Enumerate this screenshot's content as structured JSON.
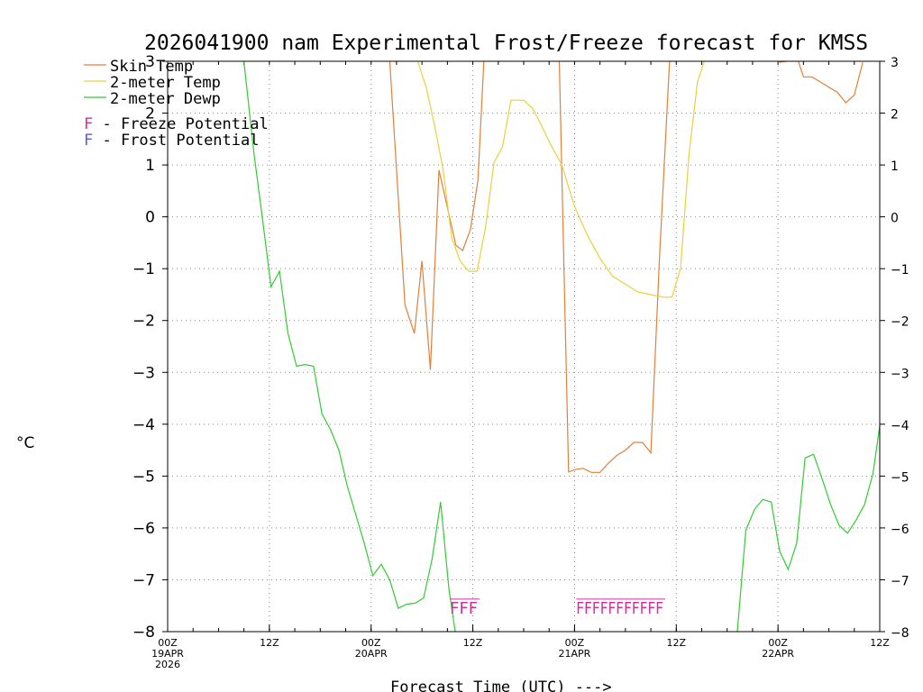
{
  "chart_data": {
    "type": "line",
    "title": "2026041900 nam Experimental Frost/Freeze forecast for KMSS",
    "ylabel": "°C",
    "xlabel": "Forecast Time (UTC) --->",
    "ylim": [
      -8,
      3
    ],
    "yticks": [
      -8,
      -7,
      -6,
      -5,
      -4,
      -3,
      -2,
      -1,
      0,
      1,
      2,
      3
    ],
    "xlim_hours": [
      0,
      84
    ],
    "xticks": [
      {
        "h": 0,
        "lines": [
          "00Z",
          "19APR",
          "2026"
        ]
      },
      {
        "h": 12,
        "lines": [
          "12Z"
        ]
      },
      {
        "h": 24,
        "lines": [
          "00Z",
          "20APR"
        ]
      },
      {
        "h": 36,
        "lines": [
          "12Z"
        ]
      },
      {
        "h": 48,
        "lines": [
          "00Z",
          "21APR"
        ]
      },
      {
        "h": 60,
        "lines": [
          "12Z"
        ]
      },
      {
        "h": 72,
        "lines": [
          "00Z",
          "22APR"
        ]
      },
      {
        "h": 84,
        "lines": [
          "12Z"
        ]
      }
    ],
    "series": [
      {
        "name": "Skin Temp",
        "color": "#e0803a",
        "points": [
          [
            26.2,
            3.0
          ],
          [
            28,
            -1.7
          ],
          [
            29.1,
            -2.25
          ],
          [
            30,
            -0.85
          ],
          [
            31,
            -2.95
          ],
          [
            32,
            0.9
          ],
          [
            34,
            -0.55
          ],
          [
            34.8,
            -0.65
          ],
          [
            35.7,
            -0.25
          ],
          [
            36.6,
            0.7
          ],
          [
            37.3,
            3.0
          ],
          null,
          [
            46.2,
            3.0
          ],
          [
            47.3,
            -4.92
          ],
          [
            48.2,
            -4.87
          ],
          [
            49,
            -4.85
          ],
          [
            50,
            -4.93
          ],
          [
            51,
            -4.93
          ],
          [
            52,
            -4.75
          ],
          [
            53,
            -4.6
          ],
          [
            54,
            -4.5
          ],
          [
            55,
            -4.35
          ],
          [
            56,
            -4.35
          ],
          [
            57,
            -4.55
          ],
          [
            58,
            -0.85
          ],
          [
            59.2,
            3.0
          ],
          null,
          [
            72,
            2.98
          ],
          [
            73,
            3.0
          ],
          [
            74,
            3.2
          ],
          [
            75,
            2.7
          ],
          [
            76,
            2.7
          ],
          [
            77,
            2.6
          ],
          [
            78,
            2.5
          ],
          [
            79,
            2.4
          ],
          [
            80,
            2.2
          ],
          [
            81,
            2.35
          ],
          [
            82,
            2.98
          ]
        ]
      },
      {
        "name": "2-meter Temp",
        "color": "#e6d23a",
        "points": [
          [
            29.5,
            3.0
          ],
          [
            30.5,
            2.5
          ],
          [
            31.5,
            1.75
          ],
          [
            32.5,
            0.9
          ],
          [
            33.5,
            -0.4
          ],
          [
            34.5,
            -0.85
          ],
          [
            35.5,
            -1.05
          ],
          [
            36.5,
            -1.05
          ],
          [
            37.5,
            -0.2
          ],
          [
            38.5,
            1.05
          ],
          [
            39.5,
            1.35
          ],
          [
            40.5,
            2.25
          ],
          [
            42,
            2.25
          ],
          [
            43,
            2.1
          ],
          [
            44,
            1.8
          ],
          [
            45,
            1.45
          ],
          [
            46.5,
            1.0
          ],
          [
            48,
            0.2
          ],
          [
            49.5,
            -0.35
          ],
          [
            51,
            -0.8
          ],
          [
            52.5,
            -1.15
          ],
          [
            54,
            -1.3
          ],
          [
            55.5,
            -1.45
          ],
          [
            57,
            -1.5
          ],
          [
            58.5,
            -1.55
          ],
          [
            59.5,
            -1.55
          ],
          [
            60.5,
            -1.0
          ],
          [
            61.5,
            1.2
          ],
          [
            62.5,
            2.6
          ],
          [
            63.3,
            3.0
          ]
        ]
      },
      {
        "name": "2-meter Dewp",
        "color": "#33cc33",
        "points": [
          [
            9,
            3.0
          ],
          [
            10.2,
            1.2
          ],
          [
            11.2,
            -0.05
          ],
          [
            12.2,
            -1.35
          ],
          [
            13.2,
            -1.05
          ],
          [
            14.2,
            -2.25
          ],
          [
            15.2,
            -2.88
          ],
          [
            16.2,
            -2.85
          ],
          [
            17.2,
            -2.88
          ],
          [
            18.2,
            -3.8
          ],
          [
            19.2,
            -4.1
          ],
          [
            20.2,
            -4.5
          ],
          [
            21.2,
            -5.2
          ],
          [
            22.2,
            -5.75
          ],
          [
            23.2,
            -6.3
          ],
          [
            24.2,
            -6.92
          ],
          [
            25.2,
            -6.7
          ],
          [
            26.2,
            -7.0
          ],
          [
            27.2,
            -7.55
          ],
          [
            28.2,
            -7.47
          ],
          [
            29.2,
            -7.45
          ],
          [
            30.2,
            -7.35
          ],
          [
            31.2,
            -6.6
          ],
          [
            32.2,
            -5.5
          ],
          [
            33.2,
            -7.2
          ],
          [
            34.2,
            -8.3
          ],
          null,
          [
            67.2,
            -8.0
          ],
          [
            68.2,
            -6.05
          ],
          [
            69.2,
            -5.65
          ],
          [
            70.2,
            -5.45
          ],
          [
            71.2,
            -5.5
          ],
          [
            72.2,
            -6.45
          ],
          [
            73.2,
            -6.8
          ],
          [
            74.2,
            -6.3
          ],
          [
            75.2,
            -4.65
          ],
          [
            76.2,
            -4.58
          ],
          [
            77.2,
            -5.05
          ],
          [
            78.2,
            -5.55
          ],
          [
            79.2,
            -5.95
          ],
          [
            80.2,
            -6.1
          ],
          [
            81.2,
            -5.85
          ],
          [
            82.2,
            -5.55
          ],
          [
            83.2,
            -4.95
          ],
          [
            84.2,
            -3.8
          ]
        ]
      }
    ],
    "flags": [
      {
        "text": "FFF",
        "start_h": 33.3,
        "end_h": 36.8,
        "type": "Freeze",
        "color": "#d0309a"
      },
      {
        "text": "FFFFFFFFFFF",
        "start_h": 48.2,
        "end_h": 58.7,
        "type": "Freeze",
        "color": "#d0309a"
      }
    ],
    "legend": [
      {
        "label": "Skin Temp",
        "color": "#e0803a"
      },
      {
        "label": "2-meter Temp",
        "color": "#e6d23a"
      },
      {
        "label": "2-meter Dewp",
        "color": "#33cc33"
      }
    ],
    "potential_legend": [
      {
        "letter": "F",
        "text": " - Freeze Potential",
        "color": "#d0309a"
      },
      {
        "letter": "F",
        "text": " - Frost Potential",
        "color": "#5a5adf"
      }
    ]
  }
}
